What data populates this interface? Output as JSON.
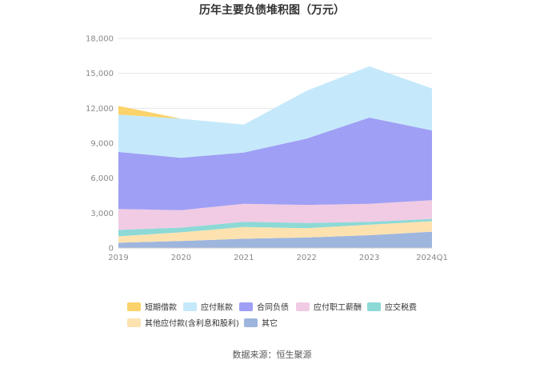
{
  "chart_data": {
    "type": "area",
    "stacked": true,
    "title": "历年主要负债堆积图（万元）",
    "categories": [
      "2019",
      "2020",
      "2021",
      "2022",
      "2023",
      "2024Q1"
    ],
    "y_ticks": [
      "0",
      "3,000",
      "6,000",
      "9,000",
      "12,000",
      "15,000",
      "18,000"
    ],
    "ylim": [
      0,
      18000
    ],
    "grid": true,
    "legend_position": "bottom",
    "series": [
      {
        "name": "其它",
        "color": "#9eb6de",
        "values": [
          450,
          600,
          800,
          900,
          1100,
          1400
        ]
      },
      {
        "name": "其他应付款(含利息和股利)",
        "color": "#fde2b0",
        "values": [
          550,
          750,
          1000,
          800,
          900,
          900
        ]
      },
      {
        "name": "应交税费",
        "color": "#8dd9d6",
        "values": [
          550,
          400,
          450,
          450,
          250,
          200
        ]
      },
      {
        "name": "应付职工薪酬",
        "color": "#f0cbe3",
        "values": [
          1800,
          1500,
          1550,
          1550,
          1550,
          1600
        ]
      },
      {
        "name": "合同负债",
        "color": "#9f9ff5",
        "values": [
          4900,
          4500,
          4400,
          5700,
          7400,
          6000
        ]
      },
      {
        "name": "应付账款",
        "color": "#c5e9fa",
        "values": [
          3200,
          3350,
          2400,
          4100,
          4400,
          3600
        ]
      },
      {
        "name": "短期借款",
        "color": "#fcd36a",
        "values": [
          750,
          0,
          0,
          0,
          0,
          0
        ]
      }
    ]
  },
  "legend_order": [
    6,
    5,
    4,
    3,
    2,
    1,
    0
  ],
  "footer": {
    "source": "数据来源：恒生聚源"
  }
}
